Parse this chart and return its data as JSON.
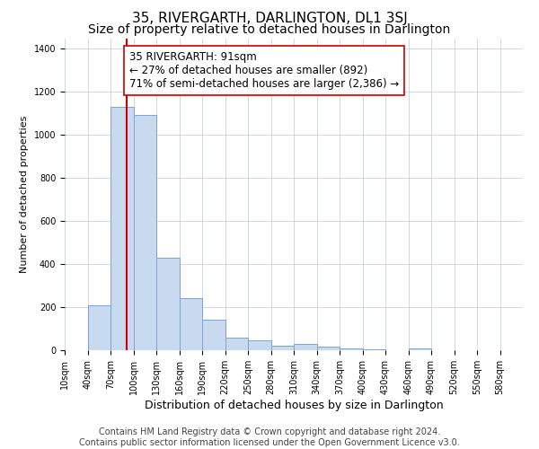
{
  "title": "35, RIVERGARTH, DARLINGTON, DL1 3SJ",
  "subtitle": "Size of property relative to detached houses in Darlington",
  "xlabel": "Distribution of detached houses by size in Darlington",
  "ylabel": "Number of detached properties",
  "bar_edges": [
    10,
    40,
    70,
    100,
    130,
    160,
    190,
    220,
    250,
    280,
    310,
    340,
    370,
    400,
    430,
    460,
    490,
    520,
    550,
    580,
    610
  ],
  "bar_heights": [
    0,
    210,
    1130,
    1095,
    430,
    240,
    140,
    60,
    45,
    20,
    30,
    15,
    10,
    5,
    0,
    8,
    0,
    0,
    0,
    0
  ],
  "bar_color": "#c9d9f0",
  "bar_edgecolor": "#7aa4d4",
  "ylim": [
    0,
    1450
  ],
  "yticks": [
    0,
    200,
    400,
    600,
    800,
    1000,
    1200,
    1400
  ],
  "property_size": 91,
  "vline_color": "#cc0000",
  "annotation_line1": "35 RIVERGARTH: 91sqm",
  "annotation_line2": "← 27% of detached houses are smaller (892)",
  "annotation_line3": "71% of semi-detached houses are larger (2,386) →",
  "annotation_bbox_color": "#ffffff",
  "annotation_bbox_edgecolor": "#cc0000",
  "footer_line1": "Contains HM Land Registry data © Crown copyright and database right 2024.",
  "footer_line2": "Contains public sector information licensed under the Open Government Licence v3.0.",
  "background_color": "#ffffff",
  "grid_color": "#d0d8e8",
  "title_fontsize": 11,
  "subtitle_fontsize": 10,
  "xlabel_fontsize": 9,
  "ylabel_fontsize": 8,
  "footer_fontsize": 7,
  "annotation_fontsize": 8.5,
  "tick_fontsize": 7
}
